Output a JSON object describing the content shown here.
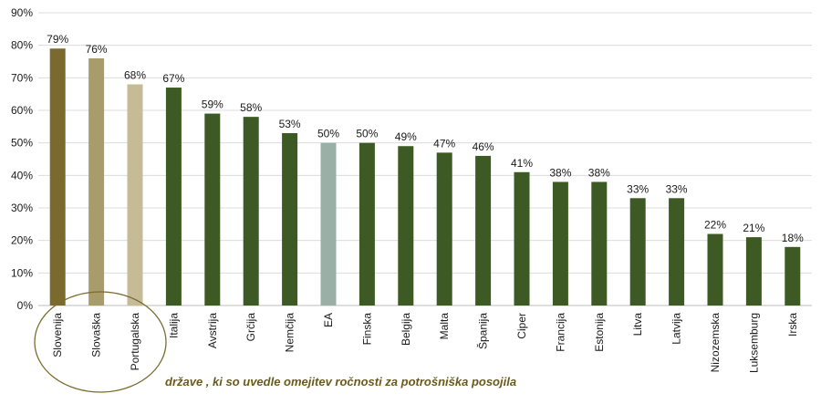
{
  "chart_data": {
    "type": "bar",
    "categories": [
      "Slovenija",
      "Slovaška",
      "Portugalska",
      "Italija",
      "Avstrija",
      "Grčija",
      "Nemčija",
      "EA",
      "Finska",
      "Belgija",
      "Malta",
      "Španija",
      "Ciper",
      "Francija",
      "Estonija",
      "Litva",
      "Latvija",
      "Nizozemska",
      "Luksemburg",
      "Irska"
    ],
    "values": [
      79,
      76,
      68,
      67,
      59,
      58,
      53,
      50,
      50,
      49,
      47,
      46,
      41,
      38,
      38,
      33,
      33,
      22,
      21,
      18
    ],
    "data_labels": [
      "79%",
      "76%",
      "68%",
      "67%",
      "59%",
      "58%",
      "53%",
      "50%",
      "50%",
      "49%",
      "47%",
      "46%",
      "41%",
      "38%",
      "38%",
      "33%",
      "33%",
      "22%",
      "21%",
      "18%"
    ],
    "bar_colors": [
      "#7b6a2e",
      "#a89c6d",
      "#c5bc97",
      "#3d5a25",
      "#3d5a25",
      "#3d5a25",
      "#3d5a25",
      "#9aafa5",
      "#3d5a25",
      "#3d5a25",
      "#3d5a25",
      "#3d5a25",
      "#3d5a25",
      "#3d5a25",
      "#3d5a25",
      "#3d5a25",
      "#3d5a25",
      "#3d5a25",
      "#3d5a25",
      "#3d5a25"
    ],
    "ylim": [
      0,
      90
    ],
    "yticks": [
      "0%",
      "10%",
      "20%",
      "30%",
      "40%",
      "50%",
      "60%",
      "70%",
      "80%",
      "90%"
    ],
    "grid": true,
    "annotation": "države , ki so uvedle omejitev ročnosti za potrošniška posojila",
    "annotation_color": "#6b5a1e",
    "highlight_color": "#7b6a2e"
  }
}
